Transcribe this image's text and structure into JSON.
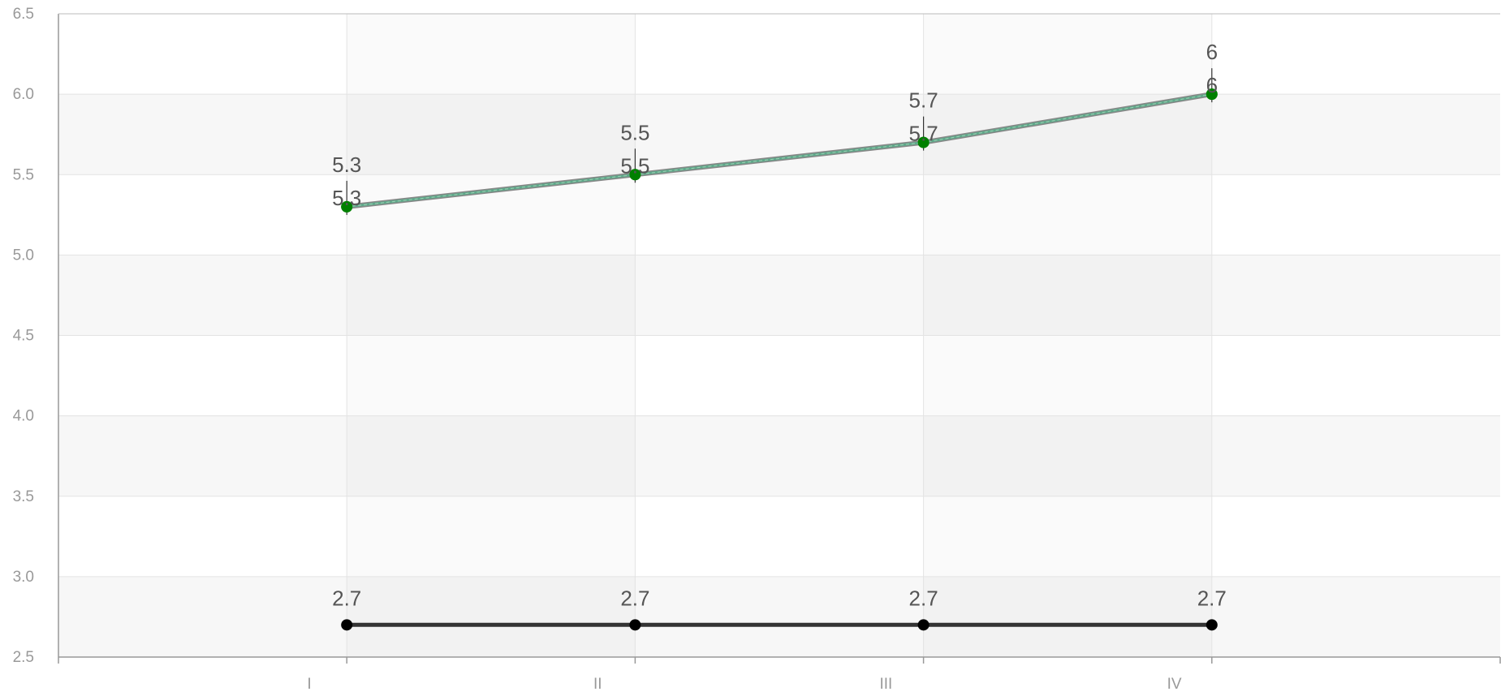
{
  "chart_data": {
    "type": "line",
    "title": "",
    "xlabel": "",
    "ylabel": "",
    "categories": [
      "I",
      "II",
      "III",
      "IV"
    ],
    "ylim": [
      2.5,
      6.5
    ],
    "yticks": [
      "2.5",
      "3.0",
      "3.5",
      "4.0",
      "4.5",
      "5.0",
      "5.5",
      "6.0",
      "6.5"
    ],
    "grid": true,
    "legend": "none",
    "series": [
      {
        "values": [
          5.3,
          5.5,
          5.7,
          6.0
        ],
        "labels": [
          "5.3",
          "5.5",
          "5.7",
          "6"
        ],
        "line_color": "#888888",
        "point_color": "#008000",
        "label_style": "label-line"
      },
      {
        "values": [
          5.3,
          5.5,
          5.7,
          6.0
        ],
        "labels": [
          "5.3",
          "5.5",
          "5.7",
          "6"
        ],
        "line_color": "#5fa88a",
        "point_color": "#008000",
        "label_style": "inline"
      },
      {
        "values": [
          2.7,
          2.7,
          2.7,
          2.7
        ],
        "labels": [
          "2.7",
          "2.7",
          "2.7",
          "2.7"
        ],
        "line_color": "#333333",
        "point_color": "#000000",
        "label_style": "above"
      }
    ]
  }
}
